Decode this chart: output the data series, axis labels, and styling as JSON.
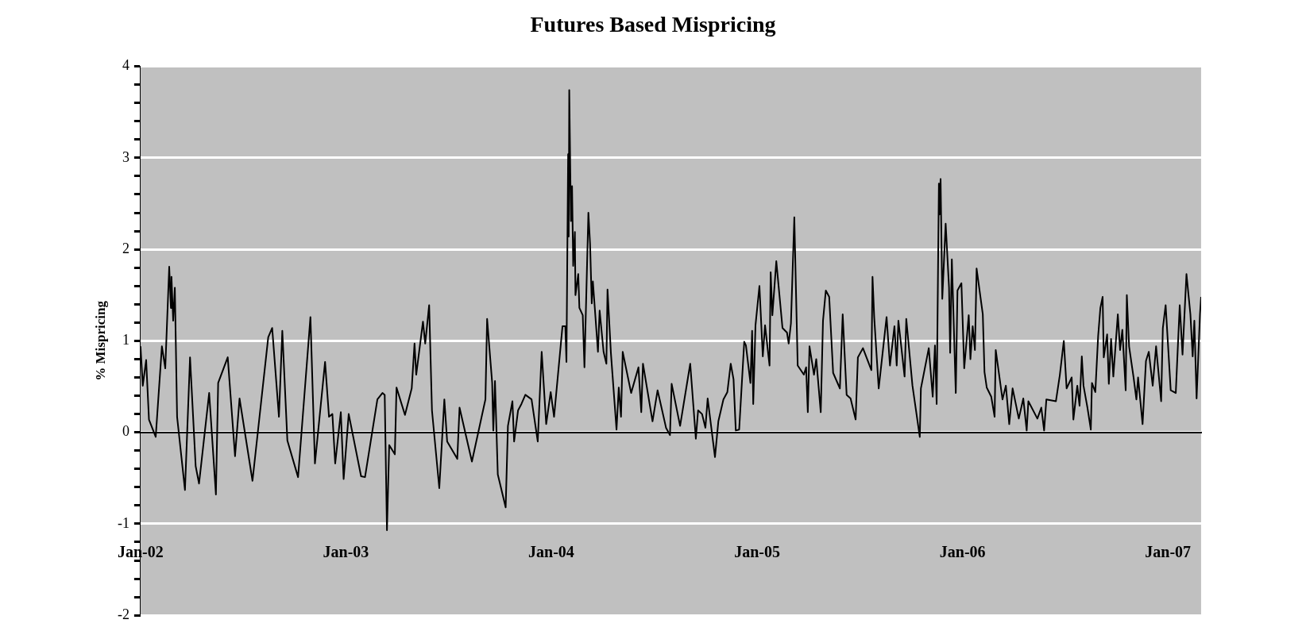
{
  "chart_data": {
    "type": "line",
    "title": "Futures Based Mispricing",
    "ylabel": "% Mispricing",
    "xlim": [
      "2002-01-01",
      "2007-03-01"
    ],
    "xticks": [
      {
        "value": "2002-01",
        "label": "Jan-02"
      },
      {
        "value": "2003-01",
        "label": "Jan-03"
      },
      {
        "value": "2004-01",
        "label": "Jan-04"
      },
      {
        "value": "2005-01",
        "label": "Jan-05"
      },
      {
        "value": "2006-01",
        "label": "Jan-06"
      },
      {
        "value": "2007-01",
        "label": "Jan-07"
      }
    ],
    "ylim": [
      -2,
      4
    ],
    "yticks": [
      -2,
      {
        "value": -1.8,
        "label": null
      },
      {
        "value": -1.6,
        "label": null
      },
      {
        "value": -1.4,
        "label": null
      },
      {
        "value": -1.2,
        "label": null
      },
      -1,
      {
        "value": -0.8,
        "label": null
      },
      {
        "value": -0.6,
        "label": null
      },
      {
        "value": -0.4,
        "label": null
      },
      {
        "value": -0.2,
        "label": null
      },
      0,
      {
        "value": 0.2,
        "label": null
      },
      {
        "value": 0.4,
        "label": null
      },
      {
        "value": 0.6,
        "label": null
      },
      {
        "value": 0.8,
        "label": null
      },
      1,
      {
        "value": 1.2,
        "label": null
      },
      {
        "value": 1.4,
        "label": null
      },
      {
        "value": 1.6,
        "label": null
      },
      {
        "value": 1.8,
        "label": null
      },
      2,
      {
        "value": 2.2,
        "label": null
      },
      {
        "value": 2.4,
        "label": null
      },
      {
        "value": 2.6,
        "label": null
      },
      {
        "value": 2.8,
        "label": null
      },
      3,
      {
        "value": 3.2,
        "label": null
      },
      {
        "value": 3.4,
        "label": null
      },
      {
        "value": 3.6,
        "label": null
      },
      {
        "value": 3.8,
        "label": null
      },
      4
    ],
    "grid": "y",
    "series": [
      {
        "color": "#000000",
        "x": [
          "2002-01-01",
          "2002-01-05",
          "2002-01-11",
          "2002-01-16",
          "2002-01-28",
          "2002-02-08",
          "2002-02-14",
          "2002-02-21",
          "2002-02-24",
          "2002-02-25",
          "2002-02-28",
          "2002-03-03",
          "2002-03-07",
          "2002-03-21",
          "2002-03-30",
          "2002-04-09",
          "2002-04-15",
          "2002-05-03",
          "2002-05-15",
          "2002-05-19",
          "2002-06-05",
          "2002-06-18",
          "2002-06-26",
          "2002-07-19",
          "2002-08-16",
          "2002-08-23",
          "2002-09-04",
          "2002-09-10",
          "2002-09-19",
          "2002-10-08",
          "2002-10-30",
          "2002-11-07",
          "2002-11-25",
          "2002-12-02",
          "2002-12-08",
          "2002-12-13",
          "2002-12-23",
          "2002-12-28",
          "2003-01-06",
          "2003-01-28",
          "2003-02-04",
          "2003-02-26",
          "2003-03-07",
          "2003-03-11",
          "2003-03-15",
          "2003-03-19",
          "2003-03-29",
          "2003-04-01",
          "2003-04-16",
          "2003-04-28",
          "2003-05-03",
          "2003-05-06",
          "2003-05-18",
          "2003-05-22",
          "2003-05-29",
          "2003-06-03",
          "2003-06-16",
          "2003-06-25",
          "2003-06-30",
          "2003-07-18",
          "2003-07-22",
          "2003-08-13",
          "2003-09-06",
          "2003-09-09",
          "2003-09-18",
          "2003-09-20",
          "2003-09-23",
          "2003-09-28",
          "2003-10-12",
          "2003-10-16",
          "2003-10-24",
          "2003-10-27",
          "2003-11-03",
          "2003-11-09",
          "2003-11-16",
          "2003-11-27",
          "2003-12-08",
          "2003-12-15",
          "2003-12-23",
          "2003-12-31",
          "2004-01-06",
          "2004-01-21",
          "2004-01-26",
          "2004-01-28",
          "2004-01-31",
          "2004-02-01",
          "2004-02-02",
          "2004-02-05",
          "2004-02-07",
          "2004-02-09",
          "2004-02-12",
          "2004-02-13",
          "2004-02-18",
          "2004-02-20",
          "2004-02-26",
          "2004-02-29",
          "2004-03-07",
          "2004-03-10",
          "2004-03-13",
          "2004-03-15",
          "2004-03-24",
          "2004-03-27",
          "2004-04-03",
          "2004-04-08",
          "2004-04-10",
          "2004-04-16",
          "2004-04-26",
          "2004-04-30",
          "2004-05-04",
          "2004-05-07",
          "2004-05-22",
          "2004-06-04",
          "2004-06-09",
          "2004-06-12",
          "2004-06-29",
          "2004-07-08",
          "2004-07-23",
          "2004-07-30",
          "2004-08-02",
          "2004-08-17",
          "2004-09-04",
          "2004-09-14",
          "2004-09-18",
          "2004-09-25",
          "2004-10-01",
          "2004-10-05",
          "2004-10-18",
          "2004-10-24",
          "2004-11-02",
          "2004-11-09",
          "2004-11-15",
          "2004-11-20",
          "2004-11-24",
          "2004-11-30",
          "2004-12-09",
          "2004-12-12",
          "2004-12-20",
          "2004-12-23",
          "2004-12-25",
          "2004-12-29",
          "2005-01-05",
          "2005-01-11",
          "2005-01-15",
          "2005-01-23",
          "2005-01-25",
          "2005-01-28",
          "2005-02-04",
          "2005-02-15",
          "2005-02-23",
          "2005-02-26",
          "2005-03-02",
          "2005-03-08",
          "2005-03-14",
          "2005-03-25",
          "2005-03-29",
          "2005-04-01",
          "2005-04-04",
          "2005-04-12",
          "2005-04-16",
          "2005-04-24",
          "2005-04-28",
          "2005-05-03",
          "2005-05-09",
          "2005-05-16",
          "2005-05-28",
          "2005-06-02",
          "2005-06-09",
          "2005-06-16",
          "2005-06-25",
          "2005-06-29",
          "2005-07-08",
          "2005-07-23",
          "2005-07-25",
          "2005-07-28",
          "2005-08-05",
          "2005-08-12",
          "2005-08-19",
          "2005-08-25",
          "2005-09-02",
          "2005-09-06",
          "2005-09-09",
          "2005-09-20",
          "2005-09-23",
          "2005-10-04",
          "2005-10-17",
          "2005-10-19",
          "2005-11-02",
          "2005-11-09",
          "2005-11-13",
          "2005-11-16",
          "2005-11-20",
          "2005-11-21",
          "2005-11-23",
          "2005-11-26",
          "2005-12-02",
          "2005-12-08",
          "2005-12-10",
          "2005-12-13",
          "2005-12-20",
          "2005-12-23",
          "2005-12-30",
          "2006-01-04",
          "2006-01-12",
          "2006-01-15",
          "2006-01-19",
          "2006-01-23",
          "2006-01-26",
          "2006-02-06",
          "2006-02-09",
          "2006-02-13",
          "2006-02-21",
          "2006-02-27",
          "2006-03-01",
          "2006-03-13",
          "2006-03-19",
          "2006-03-25",
          "2006-03-31",
          "2006-04-11",
          "2006-04-19",
          "2006-04-25",
          "2006-04-28",
          "2006-05-14",
          "2006-05-21",
          "2006-05-26",
          "2006-05-30",
          "2006-06-16",
          "2006-06-23",
          "2006-06-30",
          "2006-07-05",
          "2006-07-14",
          "2006-07-17",
          "2006-07-24",
          "2006-07-28",
          "2006-08-01",
          "2006-08-04",
          "2006-08-11",
          "2006-08-17",
          "2006-08-19",
          "2006-08-25",
          "2006-08-30",
          "2006-09-03",
          "2006-09-07",
          "2006-09-09",
          "2006-09-15",
          "2006-09-18",
          "2006-09-22",
          "2006-09-26",
          "2006-10-04",
          "2006-10-08",
          "2006-10-12",
          "2006-10-18",
          "2006-10-20",
          "2006-10-24",
          "2006-11-01",
          "2006-11-06",
          "2006-11-09",
          "2006-11-17",
          "2006-11-23",
          "2006-11-28",
          "2006-12-05",
          "2006-12-11",
          "2006-12-20",
          "2006-12-23",
          "2006-12-28",
          "2007-01-06",
          "2007-01-15",
          "2007-01-22",
          "2007-01-27",
          "2007-02-03",
          "2007-02-10",
          "2007-02-14",
          "2007-02-17",
          "2007-02-21",
          "2007-02-27",
          "2007-03-01"
        ],
        "values": [
          0.94,
          0.51,
          0.79,
          0.14,
          -0.05,
          0.94,
          0.7,
          1.81,
          1.36,
          1.7,
          1.22,
          1.58,
          0.17,
          -0.63,
          0.82,
          -0.37,
          -0.56,
          0.43,
          -0.68,
          0.54,
          0.82,
          -0.26,
          0.37,
          -0.53,
          1.04,
          1.14,
          0.17,
          1.11,
          -0.09,
          -0.49,
          1.26,
          -0.34,
          0.77,
          0.17,
          0.2,
          -0.34,
          0.22,
          -0.51,
          0.2,
          -0.48,
          -0.49,
          0.36,
          0.43,
          0.41,
          -1.07,
          -0.14,
          -0.24,
          0.49,
          0.19,
          0.48,
          0.97,
          0.63,
          1.21,
          0.97,
          1.39,
          0.24,
          -0.61,
          0.36,
          -0.1,
          -0.29,
          0.27,
          -0.32,
          0.36,
          1.24,
          0.54,
          0.02,
          0.56,
          -0.46,
          -0.82,
          0.07,
          0.34,
          -0.1,
          0.24,
          0.31,
          0.41,
          0.36,
          -0.1,
          0.88,
          0.09,
          0.44,
          0.17,
          1.16,
          1.16,
          0.77,
          3.04,
          2.14,
          3.74,
          2.31,
          2.69,
          1.82,
          2.19,
          1.5,
          1.73,
          1.36,
          1.28,
          0.71,
          2.4,
          2.06,
          1.41,
          1.65,
          0.88,
          1.33,
          0.88,
          0.75,
          1.56,
          0.87,
          0.03,
          0.49,
          0.17,
          0.88,
          0.43,
          0.71,
          0.22,
          0.75,
          0.12,
          0.46,
          0.05,
          -0.03,
          0.53,
          0.07,
          0.75,
          -0.07,
          0.24,
          0.2,
          0.05,
          0.37,
          -0.27,
          0.12,
          0.36,
          0.44,
          0.75,
          0.58,
          0.02,
          0.03,
          0.99,
          0.95,
          0.54,
          1.11,
          0.31,
          1.17,
          1.6,
          0.83,
          1.17,
          0.73,
          1.75,
          1.28,
          1.87,
          1.14,
          1.09,
          0.97,
          1.19,
          2.35,
          0.73,
          0.63,
          0.71,
          0.22,
          0.94,
          0.63,
          0.8,
          0.22,
          1.22,
          1.55,
          1.48,
          0.65,
          0.48,
          1.29,
          0.41,
          0.37,
          0.14,
          0.82,
          0.92,
          0.68,
          1.7,
          1.26,
          0.48,
          0.87,
          1.26,
          0.73,
          1.16,
          0.73,
          1.22,
          0.61,
          1.24,
          0.51,
          -0.05,
          0.48,
          0.92,
          0.39,
          0.95,
          0.31,
          2.72,
          2.38,
          2.77,
          1.46,
          2.28,
          1.58,
          0.87,
          1.89,
          0.43,
          1.55,
          1.63,
          0.7,
          1.28,
          0.8,
          1.16,
          0.9,
          1.79,
          1.29,
          0.66,
          0.49,
          0.39,
          0.17,
          0.9,
          0.36,
          0.51,
          0.09,
          0.48,
          0.15,
          0.37,
          0.02,
          0.34,
          0.15,
          0.27,
          0.02,
          0.36,
          0.34,
          0.63,
          1.0,
          0.48,
          0.6,
          0.14,
          0.51,
          0.29,
          0.83,
          0.51,
          0.27,
          0.03,
          0.54,
          0.44,
          1.05,
          1.36,
          1.48,
          0.82,
          1.07,
          0.53,
          1.02,
          0.61,
          1.29,
          0.9,
          1.12,
          0.46,
          1.5,
          0.94,
          0.6,
          0.36,
          0.6,
          0.09,
          0.78,
          0.88,
          0.51,
          0.94,
          0.34,
          1.14,
          1.39,
          0.46,
          0.43,
          1.39,
          0.85,
          1.73,
          1.29,
          0.83,
          1.22,
          0.37,
          1.29,
          1.48
        ]
      }
    ]
  }
}
